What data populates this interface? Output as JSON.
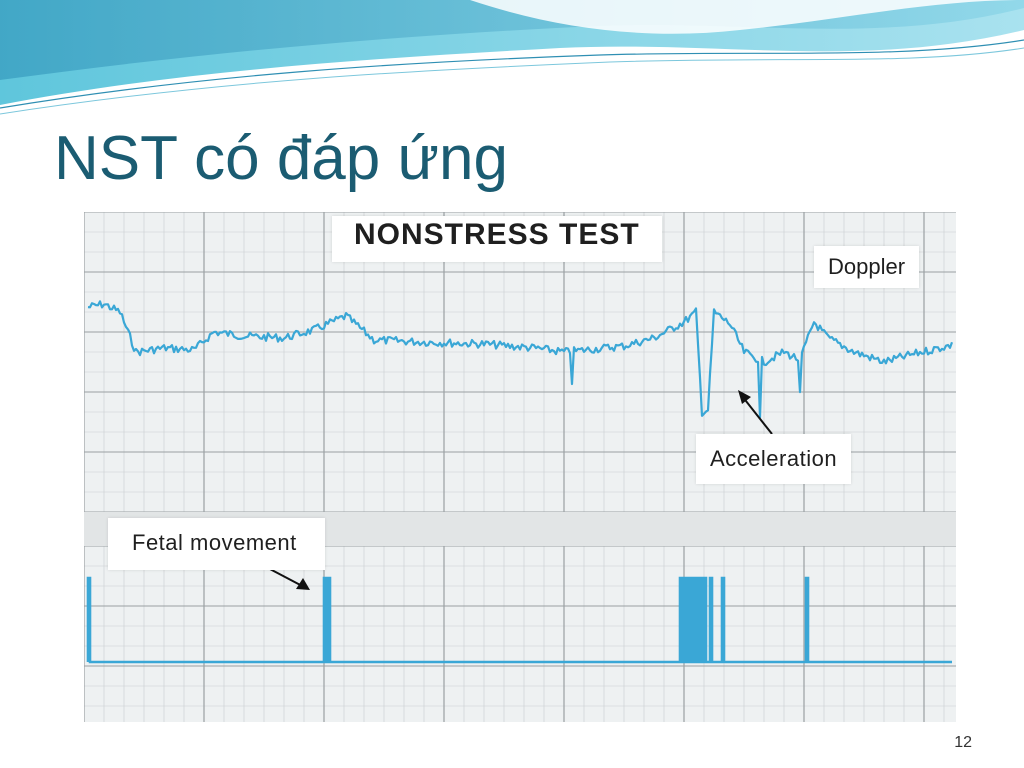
{
  "slide": {
    "title": "NST có đáp ứng",
    "page_number": "12"
  },
  "figure": {
    "heading": "NONSTRESS TEST",
    "labels": {
      "doppler": "Doppler",
      "acceleration": "Acceleration",
      "fetal_movement": "Fetal movement"
    },
    "colors": {
      "trace": "#3aa7d6",
      "grid_major": "#9aa0a3",
      "grid_minor": "#c9cdcf",
      "paper": "#eef1f2",
      "title_text": "#1b5c72"
    }
  }
}
